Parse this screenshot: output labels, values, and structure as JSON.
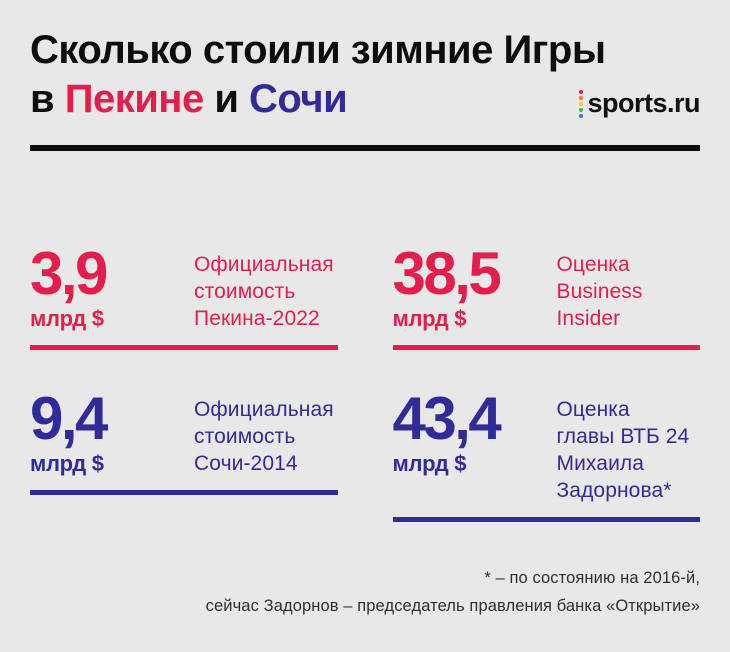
{
  "header": {
    "title_line1": "Сколько стоили зимние Игры",
    "title_line2": {
      "prefix": "в ",
      "beijing": "Пекине",
      "conjunction": " и ",
      "sochi": "Сочи"
    },
    "logo": {
      "text": "sports.ru",
      "dot_colors": [
        "#e31e4d",
        "#f07c22",
        "#f5c518",
        "#3cb44b",
        "#3b6fd4"
      ]
    }
  },
  "colors": {
    "red": "#e31e4d",
    "blue": "#312b99",
    "background": "#e9e8e8",
    "text": "#0d0d0d"
  },
  "stats": [
    {
      "value": "3,9",
      "unit": "млрд $",
      "label": "Официальная\nстоимость\nПекина-2022",
      "color": "red"
    },
    {
      "value": "38,5",
      "unit": "млрд $",
      "label": "Оценка\nBusiness\nInsider",
      "color": "red"
    },
    {
      "value": "9,4",
      "unit": "млрд $",
      "label": "Официальная\nстоимость\nСочи-2014",
      "color": "blue"
    },
    {
      "value": "43,4",
      "unit": "млрд $",
      "label": "Оценка\nглавы ВТБ 24\nМихаила\nЗадорнова*",
      "color": "blue"
    }
  ],
  "footnote": {
    "line1": "* – по состоянию на 2016-й,",
    "line2": "сейчас Задорнов – председатель правления банка «Открытие»"
  },
  "chart_data": {
    "type": "table",
    "title": "Сколько стоили зимние Игры в Пекине и Сочи",
    "unit": "млрд $",
    "items": [
      {
        "label": "Официальная стоимость Пекина-2022",
        "value": 3.9,
        "group": "Пекин-2022",
        "color": "#e31e4d"
      },
      {
        "label": "Оценка Business Insider",
        "value": 38.5,
        "group": "Пекин-2022",
        "color": "#e31e4d"
      },
      {
        "label": "Официальная стоимость Сочи-2014",
        "value": 9.4,
        "group": "Сочи-2014",
        "color": "#312b99"
      },
      {
        "label": "Оценка главы ВТБ 24 Михаила Задорнова*",
        "value": 43.4,
        "group": "Сочи-2014",
        "color": "#312b99"
      }
    ],
    "footnote": "* – по состоянию на 2016-й, сейчас Задорнов – председатель правления банка «Открытие»"
  }
}
